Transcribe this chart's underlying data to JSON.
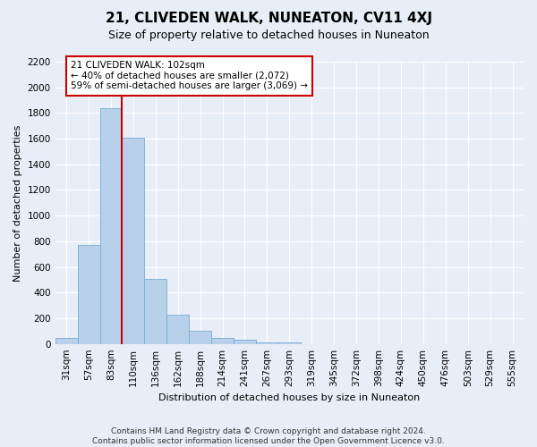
{
  "title": "21, CLIVEDEN WALK, NUNEATON, CV11 4XJ",
  "subtitle": "Size of property relative to detached houses in Nuneaton",
  "xlabel": "Distribution of detached houses by size in Nuneaton",
  "ylabel": "Number of detached properties",
  "footer_line1": "Contains HM Land Registry data © Crown copyright and database right 2024.",
  "footer_line2": "Contains public sector information licensed under the Open Government Licence v3.0.",
  "categories": [
    "31sqm",
    "57sqm",
    "83sqm",
    "110sqm",
    "136sqm",
    "162sqm",
    "188sqm",
    "214sqm",
    "241sqm",
    "267sqm",
    "293sqm",
    "319sqm",
    "345sqm",
    "372sqm",
    "398sqm",
    "424sqm",
    "450sqm",
    "476sqm",
    "503sqm",
    "529sqm",
    "555sqm"
  ],
  "values": [
    50,
    770,
    1840,
    1610,
    510,
    230,
    100,
    50,
    30,
    15,
    10,
    0,
    0,
    0,
    0,
    0,
    0,
    0,
    0,
    0,
    0
  ],
  "bar_color": "#b8d0ea",
  "bar_edge_color": "#7aacd4",
  "property_line_x": 2.5,
  "annotation_text_line1": "21 CLIVEDEN WALK: 102sqm",
  "annotation_text_line2": "← 40% of detached houses are smaller (2,072)",
  "annotation_text_line3": "59% of semi-detached houses are larger (3,069) →",
  "annotation_box_facecolor": "#ffffff",
  "annotation_box_edgecolor": "#cc0000",
  "vline_color": "#cc0000",
  "bg_color": "#e8eef8",
  "grid_color": "#ffffff",
  "ylim": [
    0,
    2200
  ],
  "yticks": [
    0,
    200,
    400,
    600,
    800,
    1000,
    1200,
    1400,
    1600,
    1800,
    2000,
    2200
  ],
  "title_fontsize": 11,
  "subtitle_fontsize": 9,
  "ylabel_fontsize": 8,
  "xlabel_fontsize": 8,
  "tick_fontsize": 7.5,
  "footer_fontsize": 6.5,
  "annot_fontsize": 7.5
}
